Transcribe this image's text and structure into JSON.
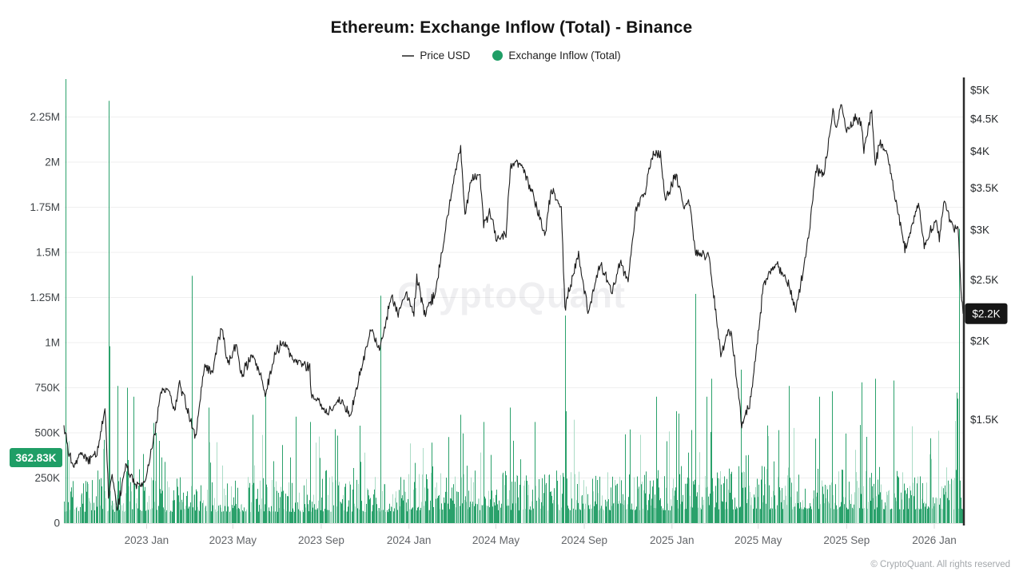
{
  "page": {
    "title": "Ethereum: Exchange Inflow (Total) - Binance"
  },
  "legend": [
    {
      "label": "Price USD",
      "marker": "line",
      "color": "#5a5a5a"
    },
    {
      "label": "Exchange Inflow (Total)",
      "marker": "circle",
      "color": "#1f9e66"
    }
  ],
  "watermark": "CryptoQuant",
  "footer": {
    "copyright": "© CryptoQuant. All rights reserved"
  },
  "chart_data": {
    "type": "mixed",
    "title": "Ethereum: Exchange Inflow (Total) - Binance",
    "legend_position": "top",
    "grid": "horizontal-only",
    "x_axis": {
      "start": "2022-09-08",
      "end": "2026-02-10",
      "ticks": [
        {
          "label": "2023 Jan",
          "date": "2023-01-01"
        },
        {
          "label": "2023 May",
          "date": "2023-05-01"
        },
        {
          "label": "2023 Sep",
          "date": "2023-09-01"
        },
        {
          "label": "2024 Jan",
          "date": "2024-01-01"
        },
        {
          "label": "2024 May",
          "date": "2024-05-01"
        },
        {
          "label": "2024 Sep",
          "date": "2024-09-01"
        },
        {
          "label": "2025 Jan",
          "date": "2025-01-01"
        },
        {
          "label": "2025 May",
          "date": "2025-05-01"
        },
        {
          "label": "2025 Sep",
          "date": "2025-09-01"
        },
        {
          "label": "2026 Jan",
          "date": "2026-01-01"
        }
      ]
    },
    "left_axis": {
      "title": "Exchange Inflow (Total), ETH",
      "scale": "linear",
      "min": 0,
      "max": 2469000,
      "ticks": [
        {
          "label": "0",
          "value": 0
        },
        {
          "label": "250K",
          "value": 250000
        },
        {
          "label": "500K",
          "value": 500000
        },
        {
          "label": "750K",
          "value": 750000
        },
        {
          "label": "1M",
          "value": 1000000
        },
        {
          "label": "1.25M",
          "value": 1250000
        },
        {
          "label": "1.5M",
          "value": 1500000
        },
        {
          "label": "1.75M",
          "value": 1750000
        },
        {
          "label": "2M",
          "value": 2000000
        },
        {
          "label": "2.25M",
          "value": 2250000
        }
      ],
      "current": {
        "label": "362.83K",
        "value": 362830,
        "badge_bg": "#1f9e66",
        "badge_fg": "#ffffff"
      }
    },
    "right_axis": {
      "title": "Price USD",
      "scale": "log",
      "min": 1028,
      "max": 5240,
      "ticks": [
        {
          "label": "$1.5K",
          "value": 1500
        },
        {
          "label": "$2K",
          "value": 2000
        },
        {
          "label": "$2.5K",
          "value": 2500
        },
        {
          "label": "$3K",
          "value": 3000
        },
        {
          "label": "$3.5K",
          "value": 3500
        },
        {
          "label": "$4K",
          "value": 4000
        },
        {
          "label": "$4.5K",
          "value": 4500
        },
        {
          "label": "$5K",
          "value": 5000
        }
      ],
      "current": {
        "label": "$2.2K",
        "value": 2210,
        "badge_bg": "#161616",
        "badge_fg": "#ffffff"
      }
    },
    "series": [
      {
        "name": "Price USD",
        "type": "line",
        "axis": "right",
        "color": "#1c1c1c",
        "anchors": [
          [
            "2022-09-08",
            1470
          ],
          [
            "2022-09-14",
            1340
          ],
          [
            "2022-09-21",
            1260
          ],
          [
            "2022-09-30",
            1330
          ],
          [
            "2022-10-12",
            1290
          ],
          [
            "2022-10-24",
            1330
          ],
          [
            "2022-11-04",
            1570
          ],
          [
            "2022-11-09",
            1140
          ],
          [
            "2022-11-14",
            1230
          ],
          [
            "2022-11-21",
            1080
          ],
          [
            "2022-12-04",
            1280
          ],
          [
            "2022-12-16",
            1170
          ],
          [
            "2022-12-30",
            1195
          ],
          [
            "2023-01-13",
            1440
          ],
          [
            "2023-01-20",
            1650
          ],
          [
            "2023-02-01",
            1680
          ],
          [
            "2023-02-09",
            1540
          ],
          [
            "2023-02-16",
            1710
          ],
          [
            "2023-02-24",
            1600
          ],
          [
            "2023-03-10",
            1400
          ],
          [
            "2023-03-22",
            1820
          ],
          [
            "2023-04-03",
            1790
          ],
          [
            "2023-04-15",
            2110
          ],
          [
            "2023-04-24",
            1840
          ],
          [
            "2023-05-06",
            1990
          ],
          [
            "2023-05-12",
            1760
          ],
          [
            "2023-05-29",
            1910
          ],
          [
            "2023-06-10",
            1740
          ],
          [
            "2023-06-15",
            1640
          ],
          [
            "2023-06-30",
            1930
          ],
          [
            "2023-07-13",
            2000
          ],
          [
            "2023-07-23",
            1870
          ],
          [
            "2023-08-16",
            1810
          ],
          [
            "2023-08-18",
            1650
          ],
          [
            "2023-09-11",
            1540
          ],
          [
            "2023-09-28",
            1610
          ],
          [
            "2023-10-12",
            1530
          ],
          [
            "2023-10-26",
            1800
          ],
          [
            "2023-11-09",
            2080
          ],
          [
            "2023-11-21",
            1940
          ],
          [
            "2023-12-08",
            2360
          ],
          [
            "2023-12-17",
            2190
          ],
          [
            "2023-12-27",
            2380
          ],
          [
            "2024-01-08",
            2220
          ],
          [
            "2024-01-12",
            2520
          ],
          [
            "2024-01-23",
            2210
          ],
          [
            "2024-02-06",
            2370
          ],
          [
            "2024-02-20",
            2940
          ],
          [
            "2024-02-28",
            3380
          ],
          [
            "2024-03-13",
            4070
          ],
          [
            "2024-03-19",
            3160
          ],
          [
            "2024-03-27",
            3580
          ],
          [
            "2024-04-09",
            3690
          ],
          [
            "2024-04-14",
            3050
          ],
          [
            "2024-04-23",
            3220
          ],
          [
            "2024-05-01",
            2930
          ],
          [
            "2024-05-15",
            2950
          ],
          [
            "2024-05-21",
            3790
          ],
          [
            "2024-06-06",
            3840
          ],
          [
            "2024-06-18",
            3480
          ],
          [
            "2024-06-24",
            3350
          ],
          [
            "2024-07-08",
            2940
          ],
          [
            "2024-07-17",
            3480
          ],
          [
            "2024-07-31",
            3230
          ],
          [
            "2024-08-05",
            2260
          ],
          [
            "2024-08-24",
            2770
          ],
          [
            "2024-09-06",
            2230
          ],
          [
            "2024-09-24",
            2650
          ],
          [
            "2024-10-10",
            2390
          ],
          [
            "2024-10-21",
            2690
          ],
          [
            "2024-11-01",
            2480
          ],
          [
            "2024-11-12",
            3250
          ],
          [
            "2024-11-24",
            3420
          ],
          [
            "2024-12-06",
            4000
          ],
          [
            "2024-12-16",
            3950
          ],
          [
            "2024-12-23",
            3340
          ],
          [
            "2025-01-06",
            3680
          ],
          [
            "2025-01-18",
            3260
          ],
          [
            "2025-01-25",
            3340
          ],
          [
            "2025-02-03",
            2750
          ],
          [
            "2025-02-21",
            2730
          ],
          [
            "2025-03-10",
            1920
          ],
          [
            "2025-03-24",
            2090
          ],
          [
            "2025-04-08",
            1480
          ],
          [
            "2025-04-20",
            1600
          ],
          [
            "2025-04-25",
            1790
          ],
          [
            "2025-05-09",
            2480
          ],
          [
            "2025-05-27",
            2640
          ],
          [
            "2025-06-10",
            2500
          ],
          [
            "2025-06-22",
            2240
          ],
          [
            "2025-07-03",
            2590
          ],
          [
            "2025-07-10",
            2960
          ],
          [
            "2025-07-21",
            3760
          ],
          [
            "2025-07-31",
            3650
          ],
          [
            "2025-08-13",
            4650
          ],
          [
            "2025-08-18",
            4320
          ],
          [
            "2025-08-24",
            4780
          ],
          [
            "2025-09-01",
            4300
          ],
          [
            "2025-09-12",
            4500
          ],
          [
            "2025-09-21",
            4470
          ],
          [
            "2025-09-25",
            3960
          ],
          [
            "2025-10-06",
            4690
          ],
          [
            "2025-10-11",
            3800
          ],
          [
            "2025-10-17",
            4140
          ],
          [
            "2025-10-27",
            3970
          ],
          [
            "2025-11-04",
            3540
          ],
          [
            "2025-11-13",
            3150
          ],
          [
            "2025-11-21",
            2790
          ],
          [
            "2025-12-01",
            3050
          ],
          [
            "2025-12-10",
            3310
          ],
          [
            "2025-12-18",
            2830
          ],
          [
            "2025-12-28",
            3010
          ],
          [
            "2026-01-04",
            3120
          ],
          [
            "2026-01-08",
            2920
          ],
          [
            "2026-01-15",
            3350
          ],
          [
            "2026-01-22",
            3140
          ],
          [
            "2026-01-28",
            2990
          ],
          [
            "2026-02-03",
            3030
          ],
          [
            "2026-02-07",
            2420
          ],
          [
            "2026-02-10",
            2210
          ]
        ]
      },
      {
        "name": "Exchange Inflow (Total)",
        "type": "bar",
        "axis": "left",
        "colors": {
          "dark": "#2aa16b",
          "light": "#abdcc6"
        },
        "envelope": {
          "2022": 205000,
          "2023": 205000,
          "2024": 235000,
          "2025": 255000,
          "2026": 255000
        },
        "typical_range": [
          40000,
          500000
        ],
        "spikes": [
          [
            "2022-09-10",
            2460000
          ],
          [
            "2022-11-09",
            2340000
          ],
          [
            "2022-11-10",
            980000
          ],
          [
            "2022-11-21",
            760000
          ],
          [
            "2022-12-05",
            750000
          ],
          [
            "2022-12-14",
            700000
          ],
          [
            "2023-01-14",
            500000
          ],
          [
            "2023-03-05",
            1370000
          ],
          [
            "2023-03-28",
            640000
          ],
          [
            "2023-05-28",
            600000
          ],
          [
            "2023-06-15",
            720000
          ],
          [
            "2023-08-17",
            560000
          ],
          [
            "2023-09-20",
            520000
          ],
          [
            "2023-10-24",
            540000
          ],
          [
            "2023-11-22",
            1260000
          ],
          [
            "2024-03-13",
            600000
          ],
          [
            "2024-04-14",
            560000
          ],
          [
            "2024-05-21",
            640000
          ],
          [
            "2024-06-24",
            560000
          ],
          [
            "2024-08-05",
            1150000
          ],
          [
            "2024-08-06",
            620000
          ],
          [
            "2024-12-10",
            700000
          ],
          [
            "2025-01-07",
            620000
          ],
          [
            "2025-02-03",
            1270000
          ],
          [
            "2025-02-18",
            700000
          ],
          [
            "2025-02-25",
            800000
          ],
          [
            "2025-04-07",
            850000
          ],
          [
            "2025-06-13",
            760000
          ],
          [
            "2025-07-25",
            700000
          ],
          [
            "2025-08-12",
            730000
          ],
          [
            "2025-09-22",
            780000
          ],
          [
            "2025-10-11",
            800000
          ],
          [
            "2025-11-05",
            790000
          ],
          [
            "2026-02-02",
            690000
          ],
          [
            "2026-02-04",
            1630000
          ],
          [
            "2026-02-10",
            362830
          ]
        ]
      }
    ]
  }
}
